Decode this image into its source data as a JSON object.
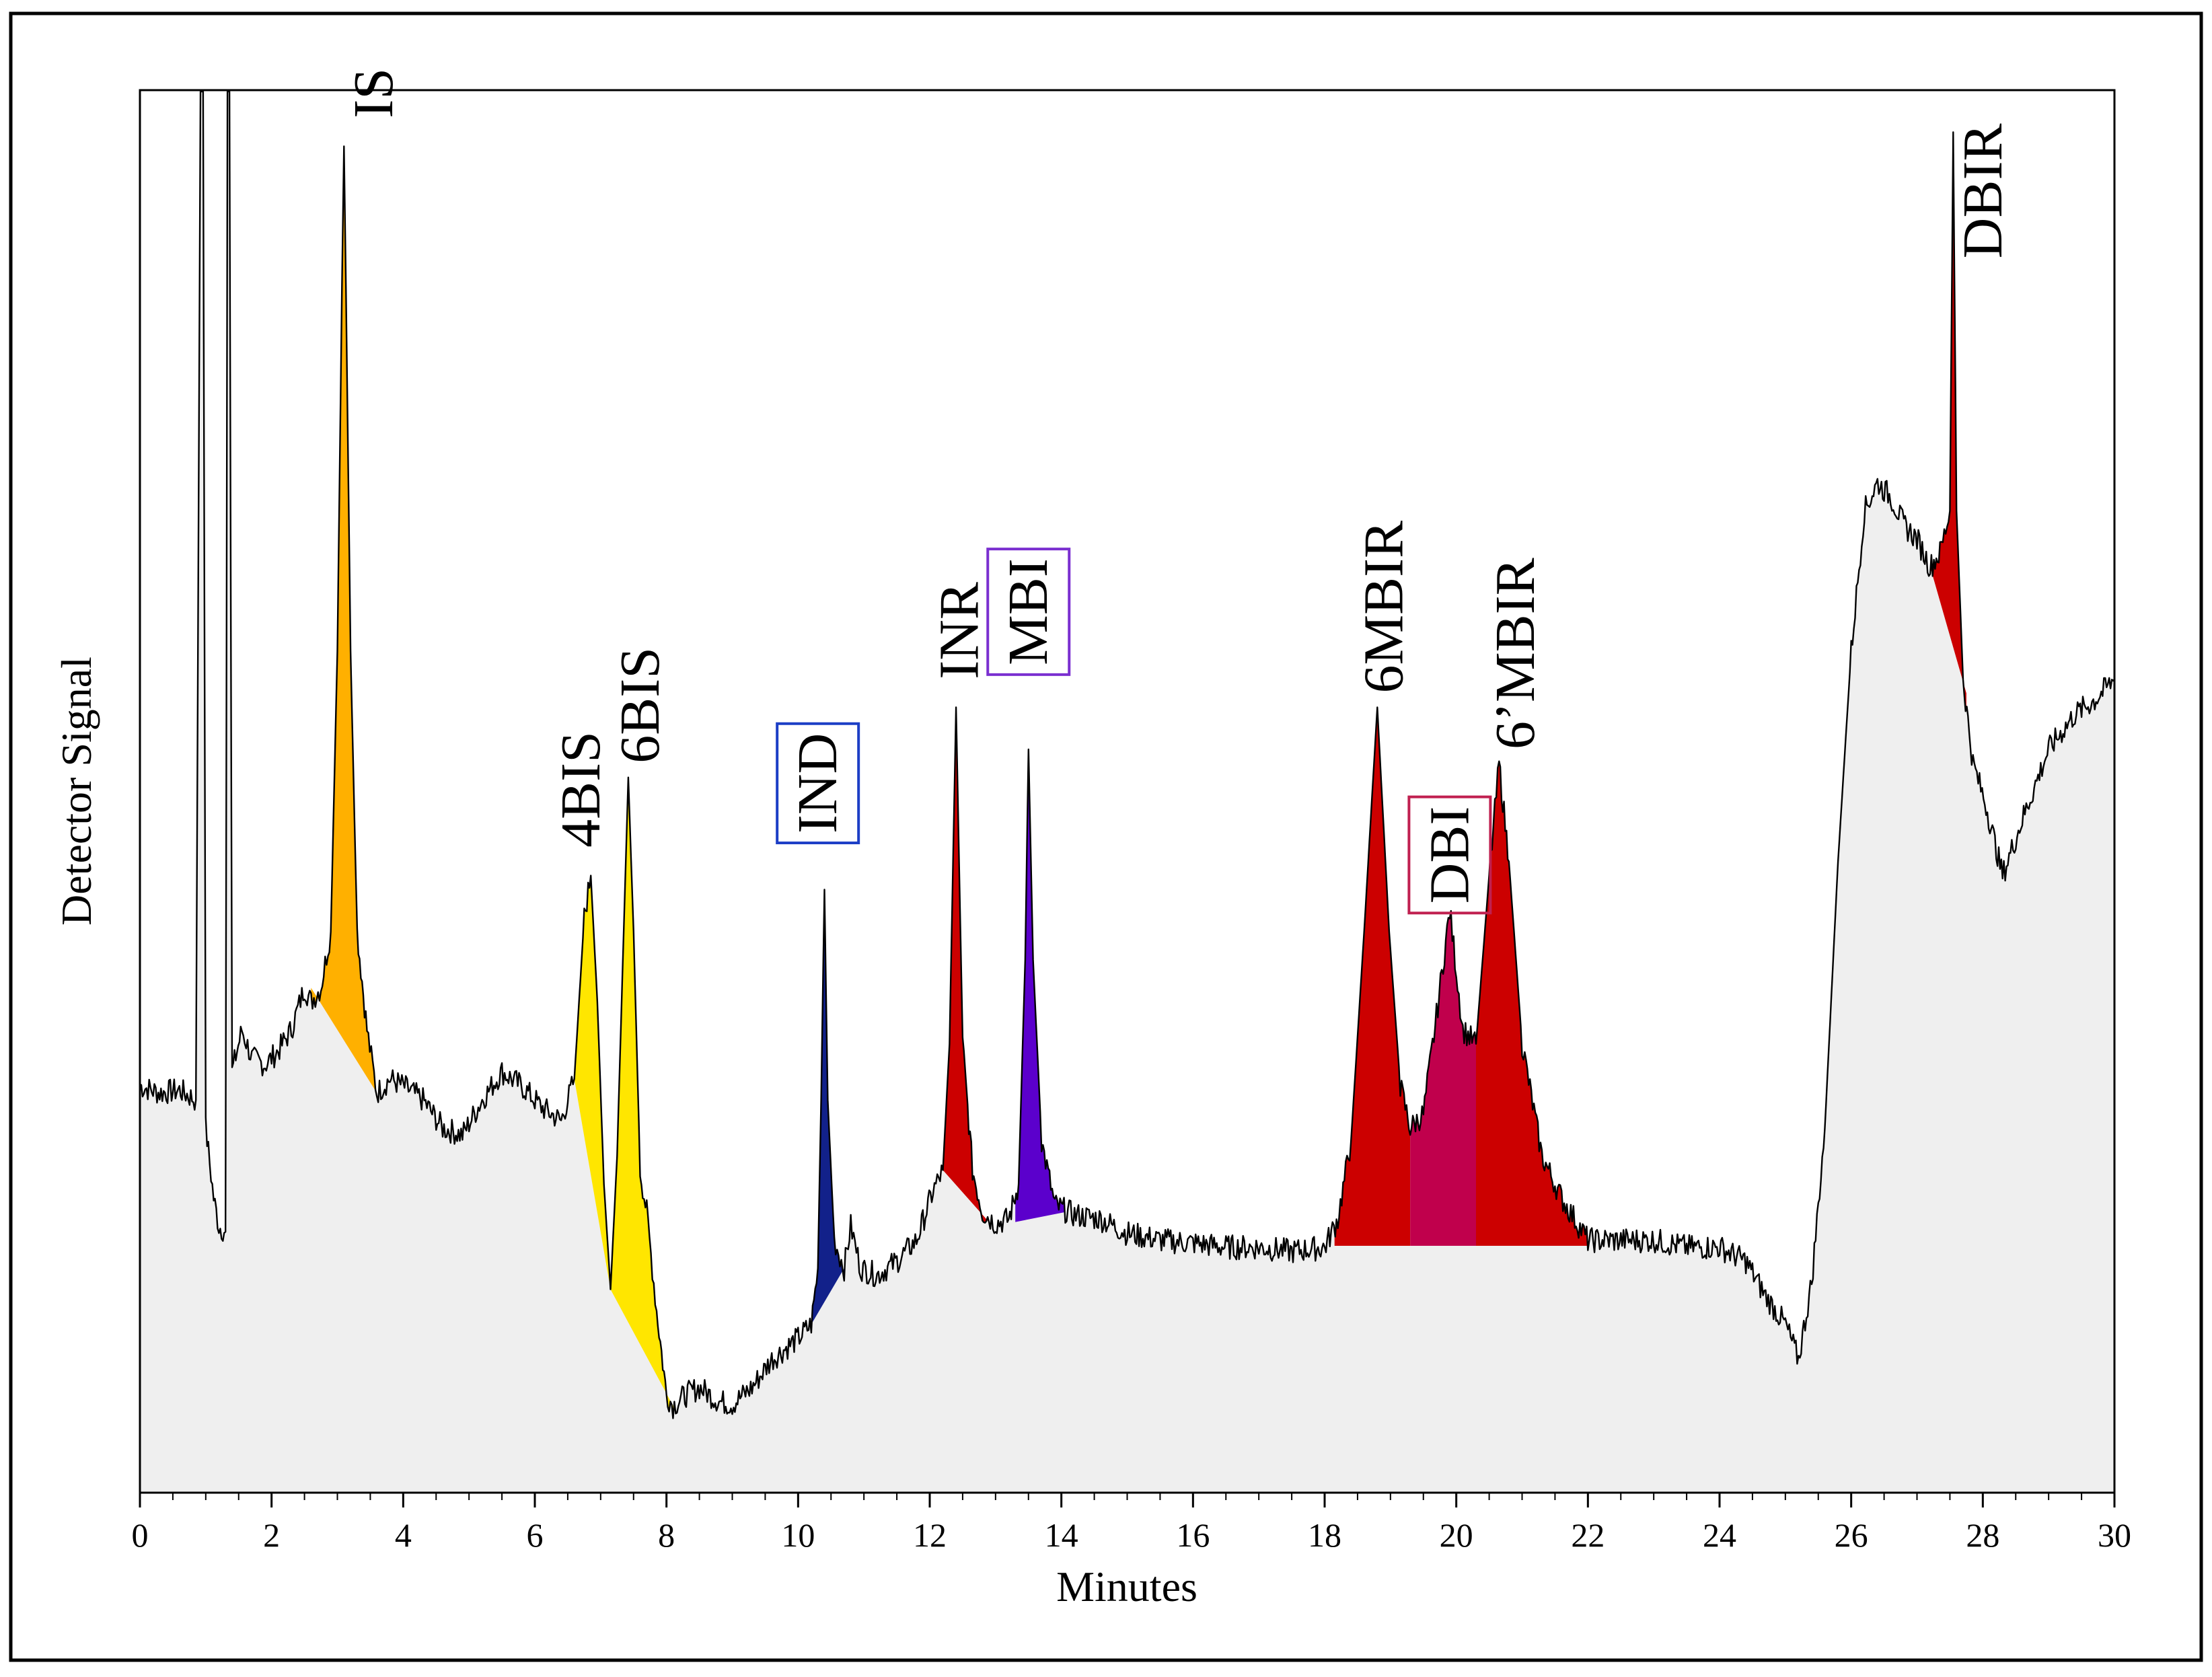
{
  "chart_data": {
    "type": "line",
    "subtype": "chromatogram",
    "title": "",
    "xlabel": "Minutes",
    "ylabel": "Detector Signal",
    "xlim": [
      0,
      30
    ],
    "ylim": [
      0,
      100
    ],
    "x_ticks": [
      0,
      2,
      4,
      6,
      8,
      10,
      12,
      14,
      16,
      18,
      20,
      22,
      24,
      26,
      28,
      30
    ],
    "x_tick_labels": [
      "0",
      "2",
      "4",
      "6",
      "8",
      "10",
      "12",
      "14",
      "16",
      "18",
      "20",
      "22",
      "24",
      "26",
      "28",
      "30"
    ],
    "grid": false,
    "colors": {
      "baseline_fill": "#efefef",
      "trace": "#000000",
      "frame": "#000000"
    },
    "trace": [
      [
        0.0,
        29
      ],
      [
        0.3,
        28.5
      ],
      [
        0.6,
        28.7
      ],
      [
        0.85,
        28
      ],
      [
        0.92,
        99.9
      ],
      [
        0.96,
        99.9
      ],
      [
        1.0,
        26
      ],
      [
        1.12,
        21
      ],
      [
        1.2,
        19
      ],
      [
        1.3,
        18.6
      ],
      [
        1.33,
        99.9
      ],
      [
        1.36,
        99.9
      ],
      [
        1.4,
        30
      ],
      [
        1.55,
        33
      ],
      [
        1.7,
        31
      ],
      [
        1.9,
        30.5
      ],
      [
        2.1,
        31.5
      ],
      [
        2.3,
        33
      ],
      [
        2.5,
        36
      ],
      [
        2.6,
        35
      ],
      [
        2.75,
        36
      ],
      [
        2.9,
        40
      ],
      [
        3.0,
        60
      ],
      [
        3.07,
        86
      ],
      [
        3.1,
        96
      ],
      [
        3.13,
        86
      ],
      [
        3.2,
        60
      ],
      [
        3.3,
        40
      ],
      [
        3.45,
        33
      ],
      [
        3.6,
        28.5
      ],
      [
        3.8,
        29.5
      ],
      [
        4.0,
        29
      ],
      [
        4.3,
        28
      ],
      [
        4.6,
        26
      ],
      [
        4.9,
        25.5
      ],
      [
        5.2,
        28
      ],
      [
        5.5,
        30
      ],
      [
        5.8,
        29
      ],
      [
        6.1,
        27.5
      ],
      [
        6.4,
        26.5
      ],
      [
        6.6,
        29.5
      ],
      [
        6.75,
        41
      ],
      [
        6.85,
        44
      ],
      [
        6.95,
        35
      ],
      [
        7.05,
        22
      ],
      [
        7.15,
        14.5
      ],
      [
        7.25,
        24
      ],
      [
        7.35,
        40
      ],
      [
        7.42,
        51
      ],
      [
        7.5,
        40
      ],
      [
        7.6,
        23
      ],
      [
        7.7,
        20
      ],
      [
        7.85,
        13
      ],
      [
        8.0,
        7
      ],
      [
        8.1,
        6.2
      ],
      [
        8.3,
        7
      ],
      [
        8.5,
        7.5
      ],
      [
        8.8,
        6.5
      ],
      [
        9.0,
        6.3
      ],
      [
        9.3,
        7.5
      ],
      [
        9.6,
        9.5
      ],
      [
        10.0,
        11
      ],
      [
        10.2,
        12
      ],
      [
        10.3,
        16
      ],
      [
        10.35,
        28
      ],
      [
        10.4,
        43
      ],
      [
        10.45,
        28
      ],
      [
        10.55,
        18
      ],
      [
        10.7,
        16
      ],
      [
        10.8,
        19
      ],
      [
        10.95,
        16
      ],
      [
        11.2,
        15.5
      ],
      [
        11.5,
        16.5
      ],
      [
        11.8,
        18
      ],
      [
        12.05,
        21.5
      ],
      [
        12.2,
        23
      ],
      [
        12.3,
        32
      ],
      [
        12.4,
        56
      ],
      [
        12.5,
        32
      ],
      [
        12.65,
        23
      ],
      [
        12.8,
        20
      ],
      [
        13.0,
        19.2
      ],
      [
        13.2,
        19.5
      ],
      [
        13.35,
        22
      ],
      [
        13.45,
        38
      ],
      [
        13.5,
        53
      ],
      [
        13.57,
        38
      ],
      [
        13.7,
        25
      ],
      [
        13.9,
        20.5
      ],
      [
        14.2,
        19.8
      ],
      [
        14.6,
        19.5
      ],
      [
        15.0,
        18.5
      ],
      [
        15.5,
        18
      ],
      [
        16.0,
        17.8
      ],
      [
        16.5,
        17.5
      ],
      [
        17.0,
        17.5
      ],
      [
        17.5,
        17.2
      ],
      [
        18.0,
        17.5
      ],
      [
        18.2,
        19.5
      ],
      [
        18.4,
        25
      ],
      [
        18.6,
        40
      ],
      [
        18.8,
        56
      ],
      [
        18.98,
        40
      ],
      [
        19.15,
        29
      ],
      [
        19.3,
        26
      ],
      [
        19.5,
        27
      ],
      [
        19.7,
        34
      ],
      [
        19.9,
        41.5
      ],
      [
        20.1,
        33
      ],
      [
        20.3,
        32
      ],
      [
        20.5,
        44
      ],
      [
        20.65,
        52
      ],
      [
        20.8,
        45
      ],
      [
        21.0,
        32
      ],
      [
        21.3,
        24
      ],
      [
        21.6,
        21
      ],
      [
        22.0,
        18
      ],
      [
        22.5,
        18
      ],
      [
        23.0,
        18
      ],
      [
        23.5,
        17.5
      ],
      [
        24.0,
        17.5
      ],
      [
        24.4,
        16.5
      ],
      [
        24.7,
        14
      ],
      [
        25.0,
        12
      ],
      [
        25.2,
        9.5
      ],
      [
        25.4,
        15
      ],
      [
        25.6,
        26
      ],
      [
        25.8,
        45
      ],
      [
        26.0,
        60
      ],
      [
        26.2,
        70
      ],
      [
        26.4,
        72
      ],
      [
        26.6,
        71
      ],
      [
        26.8,
        69
      ],
      [
        27.0,
        68
      ],
      [
        27.2,
        66
      ],
      [
        27.35,
        67
      ],
      [
        27.5,
        70
      ],
      [
        27.55,
        97
      ],
      [
        27.6,
        70
      ],
      [
        27.7,
        58
      ],
      [
        27.85,
        52
      ],
      [
        28.05,
        49
      ],
      [
        28.3,
        44
      ],
      [
        28.6,
        48
      ],
      [
        29.0,
        53
      ],
      [
        29.4,
        55.5
      ],
      [
        29.7,
        56.5
      ],
      [
        30.0,
        58
      ]
    ],
    "peaks": [
      {
        "label": "IS",
        "boxed": false,
        "color": "#ffb000",
        "range": [
          2.6,
          3.6
        ],
        "base": [
          36,
          28.5
        ],
        "label_rt": 3.55,
        "label_y": 98
      },
      {
        "label": "4BIS",
        "boxed": false,
        "color": "#ffe600",
        "range": [
          6.6,
          7.15
        ],
        "base": [
          29.5,
          14.5
        ],
        "label_rt": 6.7,
        "label_y": 46
      },
      {
        "label": "6BIS",
        "boxed": false,
        "color": "#ffe600",
        "range": [
          7.15,
          8.1
        ],
        "base": [
          14.5,
          6.2
        ],
        "label_rt": 7.6,
        "label_y": 52
      },
      {
        "label": "IND",
        "boxed": true,
        "color": "#12218a",
        "range": [
          10.2,
          10.7
        ],
        "base": [
          12,
          16
        ],
        "label_rt": 10.3,
        "label_y": 47
      },
      {
        "label": "INR",
        "boxed": false,
        "color": "#cc0000",
        "range": [
          12.2,
          12.9
        ],
        "base": [
          23,
          19.3
        ],
        "label_rt": 12.45,
        "label_y": 58
      },
      {
        "label": "MBI",
        "boxed": true,
        "color": "#5b00cc",
        "range": [
          13.3,
          14.05
        ],
        "base": [
          19.3,
          20
        ],
        "label_rt": 13.5,
        "label_y": 59
      },
      {
        "label": "6MBIR",
        "boxed": false,
        "color": "#cc0000",
        "range": [
          18.15,
          19.3
        ],
        "base": [
          17.6,
          17.6
        ],
        "label_rt": 18.9,
        "label_y": 57
      },
      {
        "label": "DBI",
        "boxed": true,
        "color": "#c0004c",
        "range": [
          19.3,
          20.3
        ],
        "base": [
          17.6,
          17.6
        ],
        "label_rt": 19.9,
        "label_y": 42
      },
      {
        "label": "6’MBIR",
        "boxed": false,
        "color": "#cc0000",
        "range": [
          20.3,
          22.0
        ],
        "base": [
          17.6,
          17.6
        ],
        "label_rt": 20.9,
        "label_y": 53
      },
      {
        "label": "DBIR",
        "boxed": false,
        "color": "#cc0000",
        "range": [
          27.2,
          27.75
        ],
        "base": [
          66,
          57
        ],
        "label_rt": 28.0,
        "label_y": 88
      }
    ],
    "box_colors": {
      "IND": "#1c3ec6",
      "MBI": "#7a2fd0",
      "DBI": "#c02050"
    }
  }
}
